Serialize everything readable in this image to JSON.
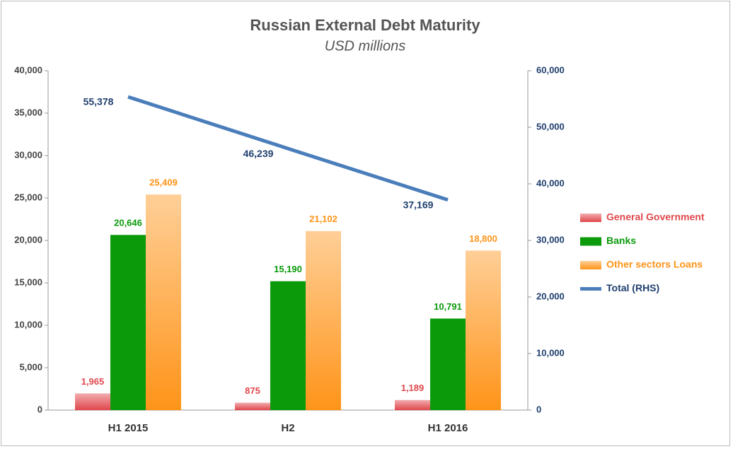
{
  "chart_data": {
    "type": "bar",
    "title": "Russian External Debt Maturity",
    "subtitle": "USD millions",
    "categories": [
      "H1 2015",
      "H2",
      "H1 2016"
    ],
    "series": [
      {
        "name": "General Government",
        "color": "#e0474c",
        "values": [
          1965,
          875,
          1189
        ],
        "value_labels": [
          "1,965",
          "875",
          "1,189"
        ]
      },
      {
        "name": "Banks",
        "color": "#0a9a0a",
        "values": [
          20646,
          15190,
          10791
        ],
        "value_labels": [
          "20,646",
          "15,190",
          "10,791"
        ]
      },
      {
        "name": "Other sectors Loans",
        "color": "#ff9419",
        "values": [
          25409,
          21102,
          18800
        ],
        "value_labels": [
          "25,409",
          "21,102",
          "18,800"
        ]
      },
      {
        "name": "Total (RHS)",
        "type": "line",
        "axis": "y2",
        "color": "#4a7ebb",
        "values": [
          55378,
          46239,
          37169
        ],
        "value_labels": [
          "55,378",
          "46,239",
          "37,169"
        ]
      }
    ],
    "ylim": [
      0,
      40000
    ],
    "yticks": [
      0,
      {
        "value": 5000,
        "label": "5,000"
      },
      {
        "value": 10000,
        "label": "10,000"
      },
      {
        "value": 15000,
        "label": "15,000"
      },
      {
        "value": 20000,
        "label": "20,000"
      },
      {
        "value": 25000,
        "label": "25,000"
      },
      {
        "value": 30000,
        "label": "30,000"
      },
      {
        "value": 35000,
        "label": "35,000"
      },
      {
        "value": 40000,
        "label": "40,000"
      }
    ],
    "y2lim": [
      0,
      60000
    ],
    "y2ticks": [
      0,
      {
        "value": 10000,
        "label": "10,000"
      },
      {
        "value": 20000,
        "label": "20,000"
      },
      {
        "value": 30000,
        "label": "30,000"
      },
      {
        "value": 40000,
        "label": "40,000"
      },
      {
        "value": 50000,
        "label": "50,000"
      },
      {
        "value": 60000,
        "label": "60,000"
      }
    ],
    "legend": "right"
  }
}
